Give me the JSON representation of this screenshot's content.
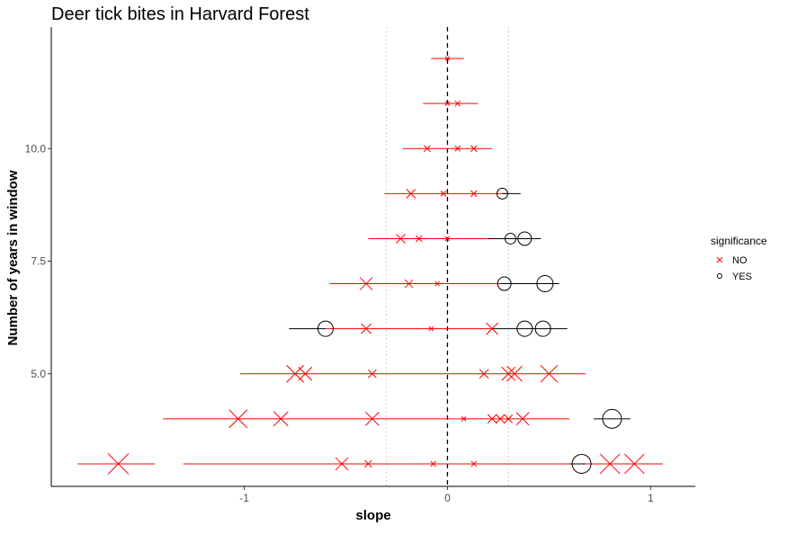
{
  "chart_data": {
    "type": "scatter",
    "title": "Deer tick bites in Harvard Forest",
    "xlabel": "slope",
    "ylabel": "Number of years in window",
    "xlim": [
      -1.95,
      1.22
    ],
    "ylim": [
      2.5,
      12.7
    ],
    "xticks": [
      -1,
      0,
      1
    ],
    "xtick_labels": [
      "-1",
      "0",
      "1"
    ],
    "yticks": [
      5.0,
      7.5,
      10.0
    ],
    "ytick_labels": [
      "5.0",
      "7.5",
      "10.0"
    ],
    "reference_lines": [
      {
        "x": 0,
        "style": "dashed",
        "color": "#000000"
      },
      {
        "x": -0.3,
        "style": "dotted",
        "color": "#bfbfbf"
      },
      {
        "x": 0.3,
        "style": "dotted",
        "color": "#bfbfbf"
      }
    ],
    "grid": false,
    "legend": {
      "title": "significance",
      "position": "right",
      "entries": [
        {
          "label": "NO",
          "shape": "x",
          "color": "#ff0000"
        },
        {
          "label": "YES",
          "shape": "circle",
          "color": "#000000"
        }
      ]
    },
    "series": [
      {
        "name": "NO",
        "shape": "x",
        "color": "#ff0000",
        "points": [
          {
            "x": 0.0,
            "y": 12,
            "lo": -0.08,
            "hi": 0.08,
            "size": 0.1
          },
          {
            "x": 0.0,
            "y": 11,
            "lo": -0.12,
            "hi": 0.15,
            "size": 0.1
          },
          {
            "x": 0.05,
            "y": 11,
            "lo": -0.12,
            "hi": 0.15,
            "size": 0.15
          },
          {
            "x": -0.1,
            "y": 10,
            "lo": -0.22,
            "hi": 0.22,
            "size": 0.2
          },
          {
            "x": 0.05,
            "y": 10,
            "lo": -0.22,
            "hi": 0.22,
            "size": 0.15
          },
          {
            "x": 0.13,
            "y": 10,
            "lo": -0.22,
            "hi": 0.22,
            "size": 0.2
          },
          {
            "x": -0.18,
            "y": 9,
            "lo": -0.31,
            "hi": 0.3,
            "size": 0.35
          },
          {
            "x": -0.02,
            "y": 9,
            "lo": -0.31,
            "hi": 0.3,
            "size": 0.15
          },
          {
            "x": 0.13,
            "y": 9,
            "lo": -0.31,
            "hi": 0.3,
            "size": 0.2
          },
          {
            "x": -0.23,
            "y": 8,
            "lo": -0.39,
            "hi": 0.25,
            "size": 0.35
          },
          {
            "x": -0.14,
            "y": 8,
            "lo": -0.39,
            "hi": 0.25,
            "size": 0.2
          },
          {
            "x": 0.0,
            "y": 8,
            "lo": -0.39,
            "hi": 0.25,
            "size": 0.1
          },
          {
            "x": -0.4,
            "y": 7,
            "lo": -0.58,
            "hi": 0.28,
            "size": 0.55
          },
          {
            "x": -0.19,
            "y": 7,
            "lo": -0.58,
            "hi": 0.28,
            "size": 0.3
          },
          {
            "x": -0.05,
            "y": 7,
            "lo": -0.58,
            "hi": 0.28,
            "size": 0.1
          },
          {
            "x": -0.4,
            "y": 6,
            "lo": -0.6,
            "hi": 0.22,
            "size": 0.4
          },
          {
            "x": -0.08,
            "y": 6,
            "lo": -0.6,
            "hi": 0.22,
            "size": 0.1
          },
          {
            "x": 0.22,
            "y": 6,
            "lo": -0.6,
            "hi": 0.22,
            "size": 0.5
          },
          {
            "x": -0.75,
            "y": 5,
            "lo": -1.02,
            "hi": 0.68,
            "size": 0.8
          },
          {
            "x": -0.7,
            "y": 5,
            "lo": -1.02,
            "hi": 0.68,
            "size": 0.6
          },
          {
            "x": -0.37,
            "y": 5,
            "lo": -1.02,
            "hi": 0.68,
            "size": 0.3
          },
          {
            "x": 0.18,
            "y": 5,
            "lo": -1.02,
            "hi": 0.68,
            "size": 0.35
          },
          {
            "x": 0.3,
            "y": 5,
            "lo": -1.02,
            "hi": 0.68,
            "size": 0.6
          },
          {
            "x": 0.33,
            "y": 5,
            "lo": -1.02,
            "hi": 0.68,
            "size": 0.7
          },
          {
            "x": 0.5,
            "y": 5,
            "lo": -1.02,
            "hi": 0.68,
            "size": 0.8
          },
          {
            "x": -1.03,
            "y": 4,
            "lo": -1.4,
            "hi": 0.6,
            "size": 0.85
          },
          {
            "x": -0.82,
            "y": 4,
            "lo": -1.4,
            "hi": 0.6,
            "size": 0.65
          },
          {
            "x": -0.37,
            "y": 4,
            "lo": -1.4,
            "hi": 0.6,
            "size": 0.6
          },
          {
            "x": 0.08,
            "y": 4,
            "lo": -1.4,
            "hi": 0.6,
            "size": 0.1
          },
          {
            "x": 0.22,
            "y": 4,
            "lo": -1.4,
            "hi": 0.6,
            "size": 0.35
          },
          {
            "x": 0.26,
            "y": 4,
            "lo": -1.4,
            "hi": 0.6,
            "size": 0.35
          },
          {
            "x": 0.3,
            "y": 4,
            "lo": -1.4,
            "hi": 0.6,
            "size": 0.3
          },
          {
            "x": 0.37,
            "y": 4,
            "lo": -1.4,
            "hi": 0.6,
            "size": 0.55
          },
          {
            "x": -1.62,
            "y": 3,
            "lo": -1.82,
            "hi": -1.44,
            "size": 1.0
          },
          {
            "x": -0.52,
            "y": 3,
            "lo": -1.3,
            "hi": 0.6,
            "size": 0.55
          },
          {
            "x": -0.39,
            "y": 3,
            "lo": -1.3,
            "hi": 0.6,
            "size": 0.25
          },
          {
            "x": -0.07,
            "y": 3,
            "lo": -1.3,
            "hi": 0.6,
            "size": 0.15
          },
          {
            "x": 0.13,
            "y": 3,
            "lo": -1.3,
            "hi": 0.6,
            "size": 0.15
          },
          {
            "x": 0.8,
            "y": 3,
            "lo": 0.68,
            "hi": 1.06,
            "size": 0.95
          },
          {
            "x": 0.92,
            "y": 3,
            "lo": 0.68,
            "hi": 1.06,
            "size": 0.95
          }
        ]
      },
      {
        "name": "YES",
        "shape": "circle",
        "color": "#000000",
        "points": [
          {
            "x": 0.27,
            "y": 9,
            "lo": 0.27,
            "hi": 0.36,
            "size": 0.45
          },
          {
            "x": 0.31,
            "y": 8,
            "lo": 0.2,
            "hi": 0.46,
            "size": 0.45
          },
          {
            "x": 0.38,
            "y": 8,
            "lo": 0.2,
            "hi": 0.46,
            "size": 0.6
          },
          {
            "x": 0.28,
            "y": 7,
            "lo": 0.26,
            "hi": 0.55,
            "size": 0.6
          },
          {
            "x": 0.48,
            "y": 7,
            "lo": 0.26,
            "hi": 0.55,
            "size": 0.75
          },
          {
            "x": -0.6,
            "y": 6,
            "lo": -0.78,
            "hi": -0.6,
            "size": 0.7
          },
          {
            "x": 0.38,
            "y": 6,
            "lo": 0.22,
            "hi": 0.59,
            "size": 0.7
          },
          {
            "x": 0.47,
            "y": 6,
            "lo": 0.22,
            "hi": 0.59,
            "size": 0.7
          },
          {
            "x": 0.81,
            "y": 4,
            "lo": 0.72,
            "hi": 0.9,
            "size": 0.9
          },
          {
            "x": 0.66,
            "y": 3,
            "lo": 0.6,
            "hi": 0.68,
            "size": 0.9
          }
        ]
      }
    ]
  }
}
